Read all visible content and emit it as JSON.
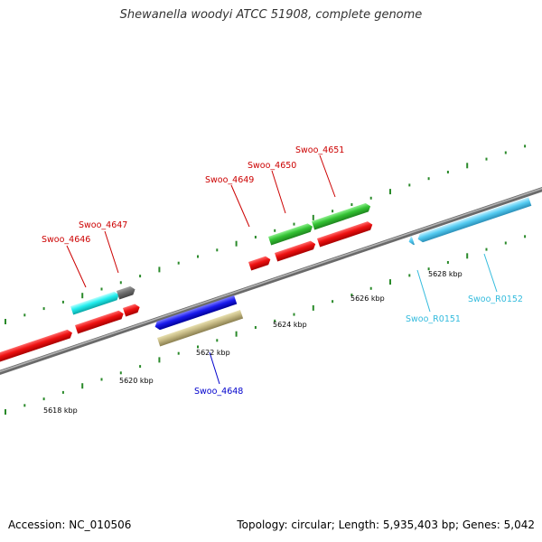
{
  "title": "Shewanella woodyi ATCC 51908, complete genome",
  "footer": {
    "accession": "Accession: NC_010506",
    "summary": "Topology: circular; Length: 5,935,403 bp; Genes: 5,042"
  },
  "colors": {
    "backbone": "#8c8c8c",
    "tick": "#2a8a2a",
    "label_red": "#cc0000",
    "label_blue": "#0000cc",
    "label_cyan": "#33bbdd"
  },
  "position_labels": [
    "5618 kbp",
    "5620 kbp",
    "5622 kbp",
    "5624 kbp",
    "5626 kbp",
    "5628 kbp"
  ],
  "gene_labels": {
    "swoo_4646": "Swoo_4646",
    "swoo_4647": "Swoo_4647",
    "swoo_4648": "Swoo_4648",
    "swoo_4649": "Swoo_4649",
    "swoo_4650": "Swoo_4650",
    "swoo_4651": "Swoo_4651",
    "swoo_r0151": "Swoo_R0151",
    "swoo_r0152": "Swoo_R0152"
  }
}
